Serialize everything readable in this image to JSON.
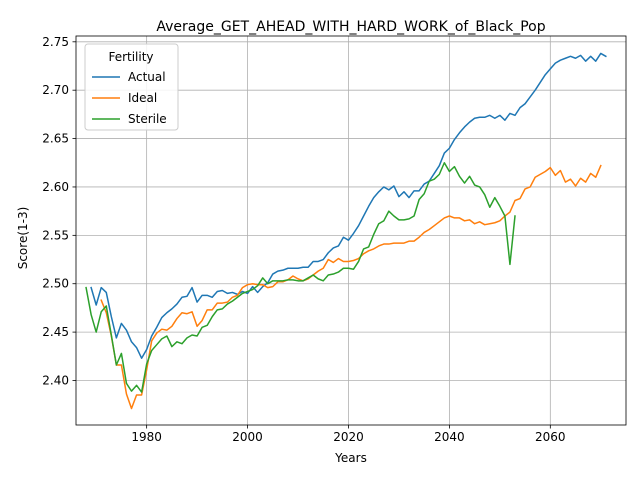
{
  "chart_data": {
    "type": "line",
    "title": "Average_GET_AHEAD_WITH_HARD_WORK_of_Black_Pop",
    "xlabel": "Years",
    "ylabel": "Score(1-3)",
    "xlim": [
      1966,
      2075
    ],
    "ylim": [
      2.354,
      2.756
    ],
    "xticks": [
      1980,
      2000,
      2020,
      2040,
      2060
    ],
    "yticks": [
      2.4,
      2.45,
      2.5,
      2.55,
      2.6,
      2.65,
      2.7,
      2.75
    ],
    "ytick_labels": [
      "2.40",
      "2.45",
      "2.50",
      "2.55",
      "2.60",
      "2.65",
      "2.70",
      "2.75"
    ],
    "grid": true,
    "legend": {
      "title": "Fertility",
      "position": "top-left"
    },
    "series": [
      {
        "name": "Actual",
        "color": "#1f77b4",
        "points": [
          [
            1969,
            2.496
          ],
          [
            1970,
            2.478
          ],
          [
            1971,
            2.496
          ],
          [
            1972,
            2.491
          ],
          [
            1973,
            2.466
          ],
          [
            1974,
            2.444
          ],
          [
            1975,
            2.459
          ],
          [
            1976,
            2.452
          ],
          [
            1977,
            2.44
          ],
          [
            1978,
            2.434
          ],
          [
            1979,
            2.423
          ],
          [
            1980,
            2.432
          ],
          [
            1981,
            2.446
          ],
          [
            1982,
            2.455
          ],
          [
            1983,
            2.465
          ],
          [
            1984,
            2.47
          ],
          [
            1985,
            2.474
          ],
          [
            1986,
            2.479
          ],
          [
            1987,
            2.486
          ],
          [
            1988,
            2.487
          ],
          [
            1989,
            2.496
          ],
          [
            1990,
            2.481
          ],
          [
            1991,
            2.488
          ],
          [
            1992,
            2.488
          ],
          [
            1993,
            2.486
          ],
          [
            1994,
            2.492
          ],
          [
            1995,
            2.493
          ],
          [
            1996,
            2.49
          ],
          [
            1997,
            2.491
          ],
          [
            1998,
            2.489
          ],
          [
            1999,
            2.492
          ],
          [
            2000,
            2.49
          ],
          [
            2001,
            2.497
          ],
          [
            2002,
            2.491
          ],
          [
            2003,
            2.497
          ],
          [
            2004,
            2.501
          ],
          [
            2005,
            2.51
          ],
          [
            2006,
            2.513
          ],
          [
            2007,
            2.514
          ],
          [
            2008,
            2.516
          ],
          [
            2009,
            2.516
          ],
          [
            2010,
            2.516
          ],
          [
            2011,
            2.517
          ],
          [
            2012,
            2.517
          ],
          [
            2013,
            2.523
          ],
          [
            2014,
            2.523
          ],
          [
            2015,
            2.525
          ],
          [
            2016,
            2.532
          ],
          [
            2017,
            2.537
          ],
          [
            2018,
            2.539
          ],
          [
            2019,
            2.548
          ],
          [
            2020,
            2.545
          ],
          [
            2021,
            2.552
          ],
          [
            2022,
            2.56
          ],
          [
            2023,
            2.57
          ],
          [
            2024,
            2.58
          ],
          [
            2025,
            2.589
          ],
          [
            2026,
            2.595
          ],
          [
            2027,
            2.6
          ],
          [
            2028,
            2.597
          ],
          [
            2029,
            2.601
          ],
          [
            2030,
            2.59
          ],
          [
            2031,
            2.595
          ],
          [
            2032,
            2.589
          ],
          [
            2033,
            2.596
          ],
          [
            2034,
            2.596
          ],
          [
            2035,
            2.603
          ],
          [
            2036,
            2.606
          ],
          [
            2037,
            2.614
          ],
          [
            2038,
            2.622
          ],
          [
            2039,
            2.635
          ],
          [
            2040,
            2.64
          ],
          [
            2041,
            2.649
          ],
          [
            2042,
            2.656
          ],
          [
            2043,
            2.662
          ],
          [
            2044,
            2.667
          ],
          [
            2045,
            2.671
          ],
          [
            2046,
            2.672
          ],
          [
            2047,
            2.672
          ],
          [
            2048,
            2.674
          ],
          [
            2049,
            2.671
          ],
          [
            2050,
            2.674
          ],
          [
            2051,
            2.669
          ],
          [
            2052,
            2.676
          ],
          [
            2053,
            2.674
          ],
          [
            2054,
            2.682
          ],
          [
            2055,
            2.686
          ],
          [
            2056,
            2.693
          ],
          [
            2057,
            2.7
          ],
          [
            2058,
            2.708
          ],
          [
            2059,
            2.716
          ],
          [
            2060,
            2.722
          ],
          [
            2061,
            2.728
          ],
          [
            2062,
            2.731
          ],
          [
            2063,
            2.733
          ],
          [
            2064,
            2.735
          ],
          [
            2065,
            2.733
          ],
          [
            2066,
            2.736
          ],
          [
            2067,
            2.73
          ],
          [
            2068,
            2.735
          ],
          [
            2069,
            2.73
          ],
          [
            2070,
            2.738
          ],
          [
            2071,
            2.735
          ]
        ]
      },
      {
        "name": "Ideal",
        "color": "#ff7f0e",
        "points": [
          [
            1971,
            2.483
          ],
          [
            1972,
            2.47
          ],
          [
            1973,
            2.446
          ],
          [
            1974,
            2.416
          ],
          [
            1975,
            2.416
          ],
          [
            1976,
            2.386
          ],
          [
            1977,
            2.371
          ],
          [
            1978,
            2.385
          ],
          [
            1979,
            2.385
          ],
          [
            1980,
            2.411
          ],
          [
            1981,
            2.441
          ],
          [
            1982,
            2.449
          ],
          [
            1983,
            2.453
          ],
          [
            1984,
            2.452
          ],
          [
            1985,
            2.456
          ],
          [
            1986,
            2.464
          ],
          [
            1987,
            2.47
          ],
          [
            1988,
            2.469
          ],
          [
            1989,
            2.471
          ],
          [
            1990,
            2.456
          ],
          [
            1991,
            2.462
          ],
          [
            1992,
            2.473
          ],
          [
            1993,
            2.473
          ],
          [
            1994,
            2.48
          ],
          [
            1995,
            2.48
          ],
          [
            1996,
            2.481
          ],
          [
            1997,
            2.486
          ],
          [
            1998,
            2.488
          ],
          [
            1999,
            2.496
          ],
          [
            2000,
            2.499
          ],
          [
            2001,
            2.5
          ],
          [
            2002,
            2.499
          ],
          [
            2003,
            2.499
          ],
          [
            2004,
            2.496
          ],
          [
            2005,
            2.497
          ],
          [
            2006,
            2.502
          ],
          [
            2007,
            2.502
          ],
          [
            2008,
            2.504
          ],
          [
            2009,
            2.508
          ],
          [
            2010,
            2.505
          ],
          [
            2011,
            2.503
          ],
          [
            2012,
            2.505
          ],
          [
            2013,
            2.509
          ],
          [
            2014,
            2.513
          ],
          [
            2015,
            2.516
          ],
          [
            2016,
            2.525
          ],
          [
            2017,
            2.522
          ],
          [
            2018,
            2.526
          ],
          [
            2019,
            2.523
          ],
          [
            2020,
            2.523
          ],
          [
            2021,
            2.524
          ],
          [
            2022,
            2.526
          ],
          [
            2023,
            2.531
          ],
          [
            2024,
            2.534
          ],
          [
            2025,
            2.536
          ],
          [
            2026,
            2.539
          ],
          [
            2027,
            2.541
          ],
          [
            2028,
            2.541
          ],
          [
            2029,
            2.542
          ],
          [
            2030,
            2.542
          ],
          [
            2031,
            2.542
          ],
          [
            2032,
            2.544
          ],
          [
            2033,
            2.544
          ],
          [
            2034,
            2.548
          ],
          [
            2035,
            2.553
          ],
          [
            2036,
            2.556
          ],
          [
            2037,
            2.56
          ],
          [
            2038,
            2.564
          ],
          [
            2039,
            2.568
          ],
          [
            2040,
            2.57
          ],
          [
            2041,
            2.568
          ],
          [
            2042,
            2.568
          ],
          [
            2043,
            2.565
          ],
          [
            2044,
            2.566
          ],
          [
            2045,
            2.562
          ],
          [
            2046,
            2.564
          ],
          [
            2047,
            2.561
          ],
          [
            2048,
            2.562
          ],
          [
            2049,
            2.563
          ],
          [
            2050,
            2.565
          ],
          [
            2051,
            2.57
          ],
          [
            2052,
            2.574
          ],
          [
            2053,
            2.586
          ],
          [
            2054,
            2.588
          ],
          [
            2055,
            2.598
          ],
          [
            2056,
            2.6
          ],
          [
            2057,
            2.61
          ],
          [
            2058,
            2.613
          ],
          [
            2059,
            2.616
          ],
          [
            2060,
            2.62
          ],
          [
            2061,
            2.612
          ],
          [
            2062,
            2.617
          ],
          [
            2063,
            2.605
          ],
          [
            2064,
            2.608
          ],
          [
            2065,
            2.601
          ],
          [
            2066,
            2.609
          ],
          [
            2067,
            2.605
          ],
          [
            2068,
            2.614
          ],
          [
            2069,
            2.61
          ],
          [
            2070,
            2.622
          ]
        ]
      },
      {
        "name": "Sterile",
        "color": "#2ca02c",
        "points": [
          [
            1968,
            2.496
          ],
          [
            1969,
            2.468
          ],
          [
            1970,
            2.45
          ],
          [
            1971,
            2.471
          ],
          [
            1972,
            2.477
          ],
          [
            1973,
            2.447
          ],
          [
            1974,
            2.416
          ],
          [
            1975,
            2.428
          ],
          [
            1976,
            2.397
          ],
          [
            1977,
            2.389
          ],
          [
            1978,
            2.395
          ],
          [
            1979,
            2.388
          ],
          [
            1980,
            2.417
          ],
          [
            1981,
            2.431
          ],
          [
            1982,
            2.437
          ],
          [
            1983,
            2.443
          ],
          [
            1984,
            2.446
          ],
          [
            1985,
            2.435
          ],
          [
            1986,
            2.44
          ],
          [
            1987,
            2.438
          ],
          [
            1988,
            2.444
          ],
          [
            1989,
            2.447
          ],
          [
            1990,
            2.446
          ],
          [
            1991,
            2.455
          ],
          [
            1992,
            2.457
          ],
          [
            1993,
            2.466
          ],
          [
            1994,
            2.473
          ],
          [
            1995,
            2.474
          ],
          [
            1996,
            2.479
          ],
          [
            1997,
            2.482
          ],
          [
            1998,
            2.486
          ],
          [
            1999,
            2.49
          ],
          [
            2000,
            2.492
          ],
          [
            2001,
            2.494
          ],
          [
            2002,
            2.498
          ],
          [
            2003,
            2.506
          ],
          [
            2004,
            2.5
          ],
          [
            2005,
            2.503
          ],
          [
            2006,
            2.503
          ],
          [
            2007,
            2.503
          ],
          [
            2008,
            2.504
          ],
          [
            2009,
            2.504
          ],
          [
            2010,
            2.503
          ],
          [
            2011,
            2.503
          ],
          [
            2012,
            2.506
          ],
          [
            2013,
            2.509
          ],
          [
            2014,
            2.505
          ],
          [
            2015,
            2.503
          ],
          [
            2016,
            2.509
          ],
          [
            2017,
            2.51
          ],
          [
            2018,
            2.512
          ],
          [
            2019,
            2.516
          ],
          [
            2020,
            2.516
          ],
          [
            2021,
            2.515
          ],
          [
            2022,
            2.523
          ],
          [
            2023,
            2.536
          ],
          [
            2024,
            2.538
          ],
          [
            2025,
            2.551
          ],
          [
            2026,
            2.562
          ],
          [
            2027,
            2.565
          ],
          [
            2028,
            2.575
          ],
          [
            2029,
            2.57
          ],
          [
            2030,
            2.566
          ],
          [
            2031,
            2.566
          ],
          [
            2032,
            2.567
          ],
          [
            2033,
            2.57
          ],
          [
            2034,
            2.587
          ],
          [
            2035,
            2.593
          ],
          [
            2036,
            2.606
          ],
          [
            2037,
            2.608
          ],
          [
            2038,
            2.613
          ],
          [
            2039,
            2.625
          ],
          [
            2040,
            2.616
          ],
          [
            2041,
            2.621
          ],
          [
            2042,
            2.611
          ],
          [
            2043,
            2.604
          ],
          [
            2044,
            2.611
          ],
          [
            2045,
            2.602
          ],
          [
            2046,
            2.6
          ],
          [
            2047,
            2.592
          ],
          [
            2048,
            2.579
          ],
          [
            2049,
            2.589
          ],
          [
            2050,
            2.58
          ],
          [
            2051,
            2.57
          ],
          [
            2052,
            2.52
          ],
          [
            2053,
            2.57
          ]
        ]
      }
    ]
  }
}
